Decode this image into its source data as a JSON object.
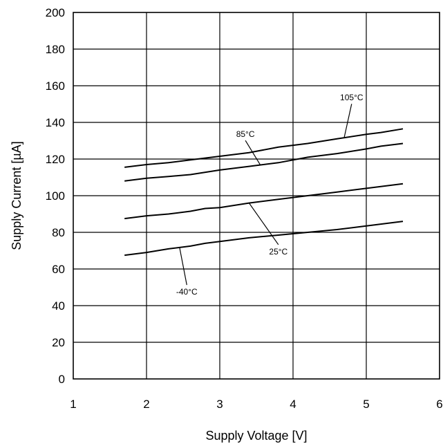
{
  "chart_data": {
    "type": "line",
    "title": "",
    "xlabel": "Supply Voltage [V]",
    "ylabel": "Supply Current [µA]",
    "xlim": [
      1,
      6
    ],
    "ylim": [
      0,
      200
    ],
    "x_ticks": [
      "1",
      "2",
      "3",
      "4",
      "5",
      "6"
    ],
    "y_ticks": [
      "0",
      "20",
      "40",
      "60",
      "80",
      "100",
      "120",
      "140",
      "160",
      "180",
      "200"
    ],
    "grid": true,
    "legend": "none",
    "series": [
      {
        "name": "105°C",
        "x": [
          1.7,
          2.0,
          2.3,
          2.6,
          3.0,
          3.4,
          3.8,
          4.2,
          4.6,
          5.0,
          5.2,
          5.5
        ],
        "y": [
          115.5,
          117,
          118,
          119.5,
          121.5,
          123.5,
          126.5,
          128.5,
          131,
          133.5,
          134.5,
          136.5
        ]
      },
      {
        "name": "85°C",
        "x": [
          1.7,
          2.0,
          2.3,
          2.6,
          3.0,
          3.4,
          3.8,
          4.2,
          4.6,
          5.0,
          5.2,
          5.5
        ],
        "y": [
          108,
          109.5,
          110.5,
          111.5,
          114,
          116,
          118,
          121,
          123,
          125.5,
          127,
          128.5
        ]
      },
      {
        "name": "25°C",
        "x": [
          1.7,
          2.0,
          2.3,
          2.6,
          2.8,
          3.0,
          3.4,
          3.8,
          4.2,
          4.6,
          5.0,
          5.5
        ],
        "y": [
          87.5,
          89,
          90,
          91.5,
          93,
          93.5,
          96,
          98,
          100,
          102,
          104,
          106.5
        ]
      },
      {
        "name": "-40°C",
        "x": [
          1.7,
          2.0,
          2.3,
          2.6,
          2.8,
          3.0,
          3.4,
          3.8,
          4.2,
          4.6,
          5.0,
          5.5
        ],
        "y": [
          67.5,
          69,
          71,
          72.5,
          74,
          75,
          77,
          78.5,
          80,
          81.5,
          83.5,
          86
        ]
      }
    ],
    "annotations": [
      {
        "text": "105°C",
        "series": "105°C",
        "point_x": 4.7,
        "point_y": 132,
        "label_x": 4.8,
        "label_y": 152
      },
      {
        "text": "85°C",
        "series": "85°C",
        "point_x": 3.55,
        "point_y": 117,
        "label_x": 3.35,
        "label_y": 132
      },
      {
        "text": "25°C",
        "series": "25°C",
        "point_x": 3.4,
        "point_y": 96,
        "label_x": 3.8,
        "label_y": 68
      },
      {
        "text": "-40°C",
        "series": "-40°C",
        "point_x": 2.45,
        "point_y": 72,
        "label_x": 2.55,
        "label_y": 46
      }
    ]
  }
}
